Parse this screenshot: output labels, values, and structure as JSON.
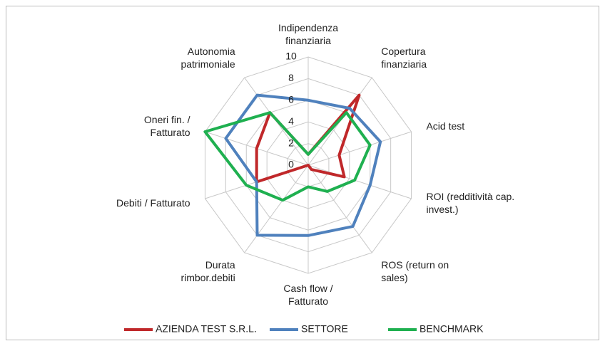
{
  "chart_data": {
    "type": "radar",
    "categories": [
      "Indipendenza finanziaria",
      "Copertura finanziaria",
      "Acid test",
      "ROI (redditività cap. invest.)",
      "ROS (return on sales)",
      "Cash flow / Fatturato",
      "Durata rimbor.debiti",
      "Debiti / Fatturato",
      "Oneri fin. / Fatturato",
      "Autonomia patrimoniale"
    ],
    "series": [
      {
        "name": "AZIENDA TEST S.R.L.",
        "color": "#c0282a",
        "values": [
          1,
          8,
          3,
          3.5,
          0.5,
          0,
          0,
          5,
          5,
          6
        ]
      },
      {
        "name": "SETTORE",
        "color": "#4f81bd",
        "values": [
          6,
          6.5,
          7,
          6,
          7,
          6.5,
          8,
          5,
          8,
          8
        ]
      },
      {
        "name": "BENCHMARK",
        "color": "#1fb050",
        "values": [
          1,
          6,
          6,
          4.5,
          3,
          2,
          4,
          6,
          10,
          6
        ]
      }
    ],
    "ylim": [
      0,
      10
    ],
    "yticks": [
      0,
      2,
      4,
      6,
      8,
      10
    ],
    "grid": true,
    "legend": "bottom"
  }
}
